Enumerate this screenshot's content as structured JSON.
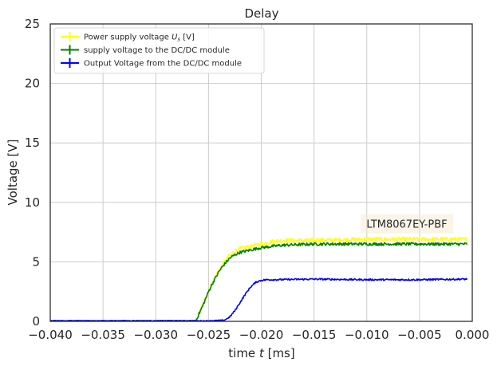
{
  "chart_data": {
    "type": "line",
    "title": "Delay",
    "xlabel": "time t [ms]",
    "ylabel": "Voltage [V]",
    "xlim": [
      -0.04,
      0.0
    ],
    "ylim": [
      0,
      25
    ],
    "xticks": [
      -0.04,
      -0.035,
      -0.03,
      -0.025,
      -0.02,
      -0.015,
      -0.01,
      -0.005,
      0.0
    ],
    "xtick_labels": [
      "−0.040",
      "−0.035",
      "−0.030",
      "−0.025",
      "−0.020",
      "−0.015",
      "−0.010",
      "−0.005",
      "0.000"
    ],
    "yticks": [
      0,
      5,
      10,
      15,
      20,
      25
    ],
    "ytick_labels": [
      "0",
      "5",
      "10",
      "15",
      "20",
      "25"
    ],
    "grid": true,
    "legend_position": "top-left",
    "annotation": "LTM8067EY-PBF",
    "annotation_x": -0.0062,
    "annotation_y": 8.2,
    "series": [
      {
        "name": "Power supply voltage  U_s [V]",
        "legend_label": "Power supply voltage ",
        "legend_math": "U",
        "legend_sub": "s",
        "legend_unit": " [V]",
        "color": "#ffff14",
        "x": [
          -0.04,
          -0.035,
          -0.03,
          -0.0262,
          -0.0255,
          -0.025,
          -0.0245,
          -0.024,
          -0.0235,
          -0.023,
          -0.0225,
          -0.022,
          -0.021,
          -0.02,
          -0.019,
          -0.018,
          -0.015,
          -0.01,
          -0.005,
          -0.0005
        ],
        "y": [
          0.05,
          0.05,
          0.05,
          0.05,
          1.5,
          2.6,
          3.5,
          4.3,
          5.0,
          5.5,
          5.9,
          6.1,
          6.3,
          6.5,
          6.7,
          6.8,
          6.8,
          6.9,
          6.9,
          6.9
        ],
        "noise": 0.18
      },
      {
        "name": "supply voltage to the DC/DC module",
        "color": "#008000",
        "x": [
          -0.04,
          -0.035,
          -0.03,
          -0.0262,
          -0.0255,
          -0.025,
          -0.0245,
          -0.024,
          -0.0235,
          -0.023,
          -0.0225,
          -0.022,
          -0.021,
          -0.02,
          -0.019,
          -0.018,
          -0.015,
          -0.01,
          -0.005,
          -0.0005
        ],
        "y": [
          0.05,
          0.05,
          0.05,
          0.05,
          1.4,
          2.5,
          3.4,
          4.2,
          4.8,
          5.3,
          5.6,
          5.8,
          6.0,
          6.2,
          6.3,
          6.4,
          6.5,
          6.5,
          6.5,
          6.5
        ],
        "noise": 0.12
      },
      {
        "name": "Output Voltage from the DC/DC module",
        "color": "#0000ff",
        "x": [
          -0.04,
          -0.035,
          -0.03,
          -0.025,
          -0.0235,
          -0.023,
          -0.0225,
          -0.022,
          -0.0215,
          -0.021,
          -0.0205,
          -0.02,
          -0.0195,
          -0.019,
          -0.015,
          -0.01,
          -0.005,
          -0.0005
        ],
        "y": [
          0.05,
          0.05,
          0.05,
          0.05,
          0.1,
          0.35,
          0.9,
          1.6,
          2.3,
          2.9,
          3.3,
          3.45,
          3.5,
          3.5,
          3.55,
          3.5,
          3.5,
          3.55
        ],
        "noise": 0.07
      }
    ]
  }
}
